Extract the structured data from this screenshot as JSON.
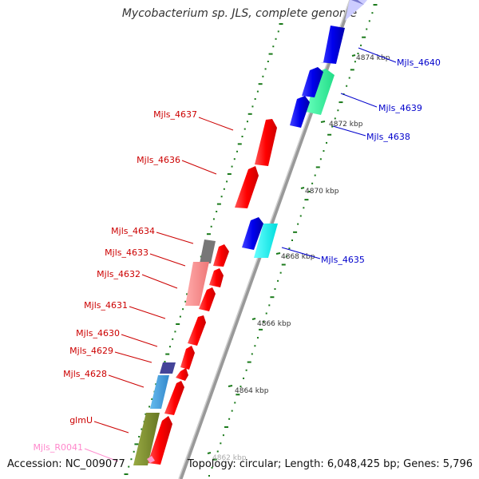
{
  "title": "Mycobacterium sp. JLS, complete genome",
  "accession": "Accession: NC_009077",
  "summary": "Topology: circular; Length: 6,048,425 bp; Genes: 5,796",
  "ticks": [
    "4874 kbp",
    "4872 kbp",
    "4870 kbp",
    "4868 kbp",
    "4866 kbp",
    "4864 kbp",
    "4862 kbp"
  ],
  "genes": {
    "right": [
      "Mjls_4640",
      "Mjls_4639",
      "Mjls_4638",
      "Mjls_4635"
    ],
    "left": [
      "Mjls_4637",
      "Mjls_4636",
      "Mjls_4634",
      "Mjls_4633",
      "Mjls_4632",
      "Mjls_4631",
      "Mjls_4630",
      "Mjls_4629",
      "Mjls_4628",
      "glmU",
      "Mjls_R0041"
    ]
  },
  "colors": {
    "forward_cds": "#ff0000",
    "reverse_cds": "#0000dd",
    "right_label": "#0000cc",
    "left_label": "#cc0000",
    "rna_label": "#ff88cc",
    "tick": "#228b22",
    "backbone": "#888888"
  }
}
